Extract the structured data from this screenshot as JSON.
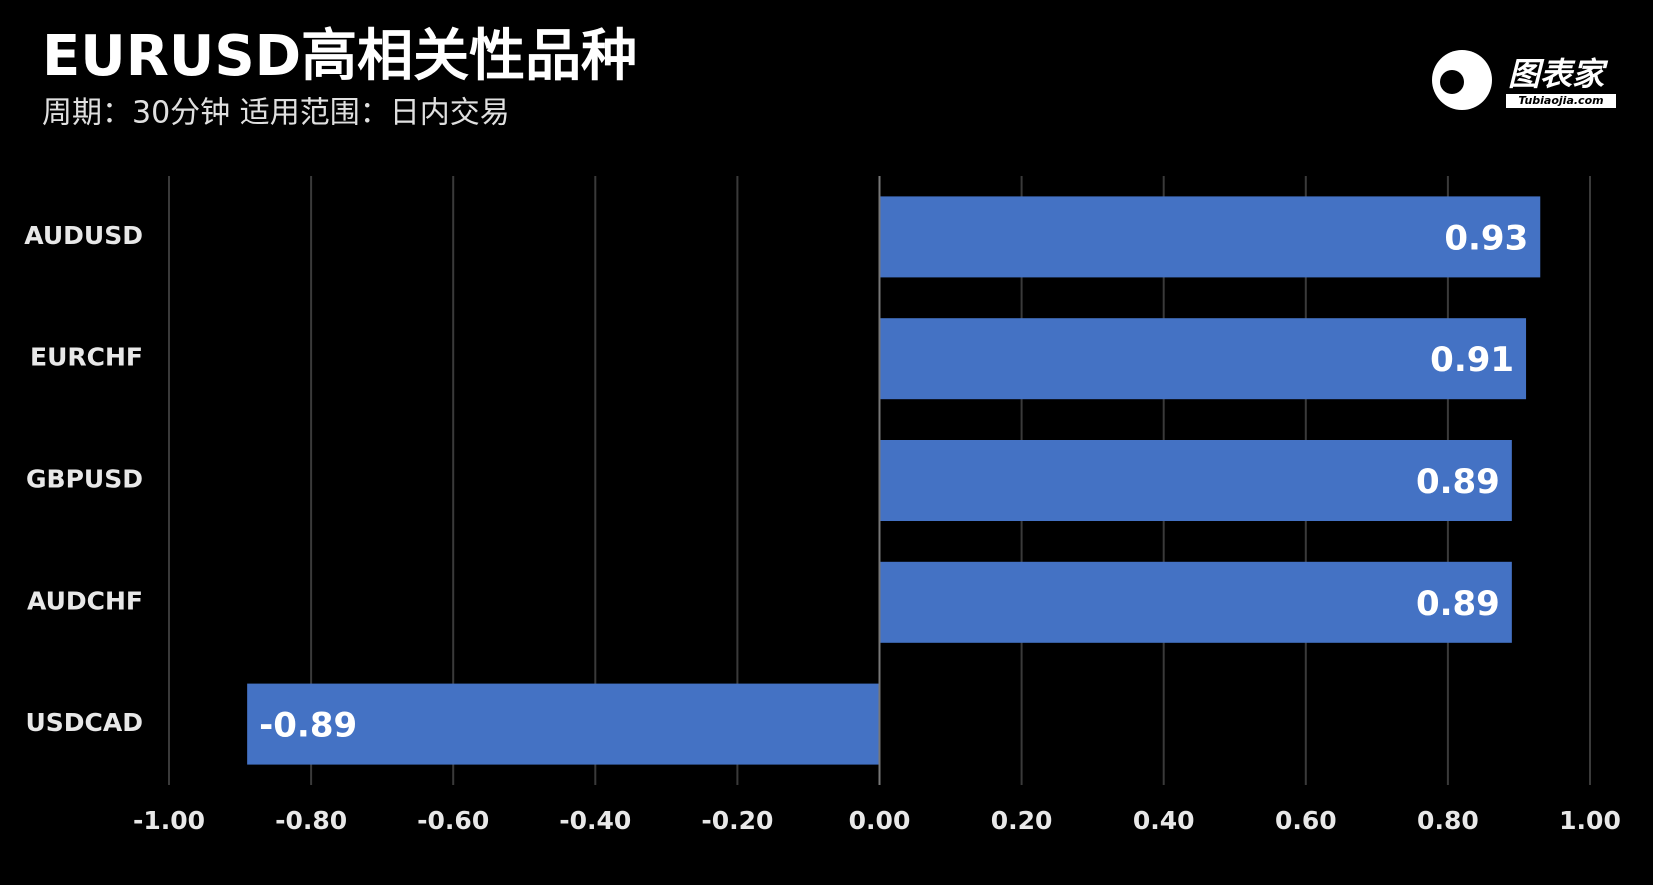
{
  "chart_data": {
    "type": "bar",
    "orientation": "horizontal",
    "title": "EURUSD高相关性品种",
    "subtitle": "周期：30分钟  适用范围：日内交易",
    "categories": [
      "AUDUSD",
      "EURCHF",
      "GBPUSD",
      "AUDCHF",
      "USDCAD"
    ],
    "values": [
      0.93,
      0.91,
      0.89,
      0.89,
      -0.89
    ],
    "color": "#4472c4",
    "xlim": [
      -1,
      1
    ],
    "xticks": [
      {
        "value": -1,
        "label": "-1.00"
      },
      {
        "value": -0.8,
        "label": "-0.80"
      },
      {
        "value": -0.6,
        "label": "-0.60"
      },
      {
        "value": -0.4,
        "label": "-0.40"
      },
      {
        "value": -0.2,
        "label": "-0.20"
      },
      {
        "value": 0,
        "label": "0.00"
      },
      {
        "value": 0.2,
        "label": "0.20"
      },
      {
        "value": 0.4,
        "label": "0.40"
      },
      {
        "value": 0.6,
        "label": "0.60"
      },
      {
        "value": 0.8,
        "label": "0.80"
      },
      {
        "value": 1,
        "label": "1.00"
      }
    ],
    "grid": true
  },
  "logo": {
    "text": "图表家",
    "subtext": "Tubiaojia.com"
  }
}
